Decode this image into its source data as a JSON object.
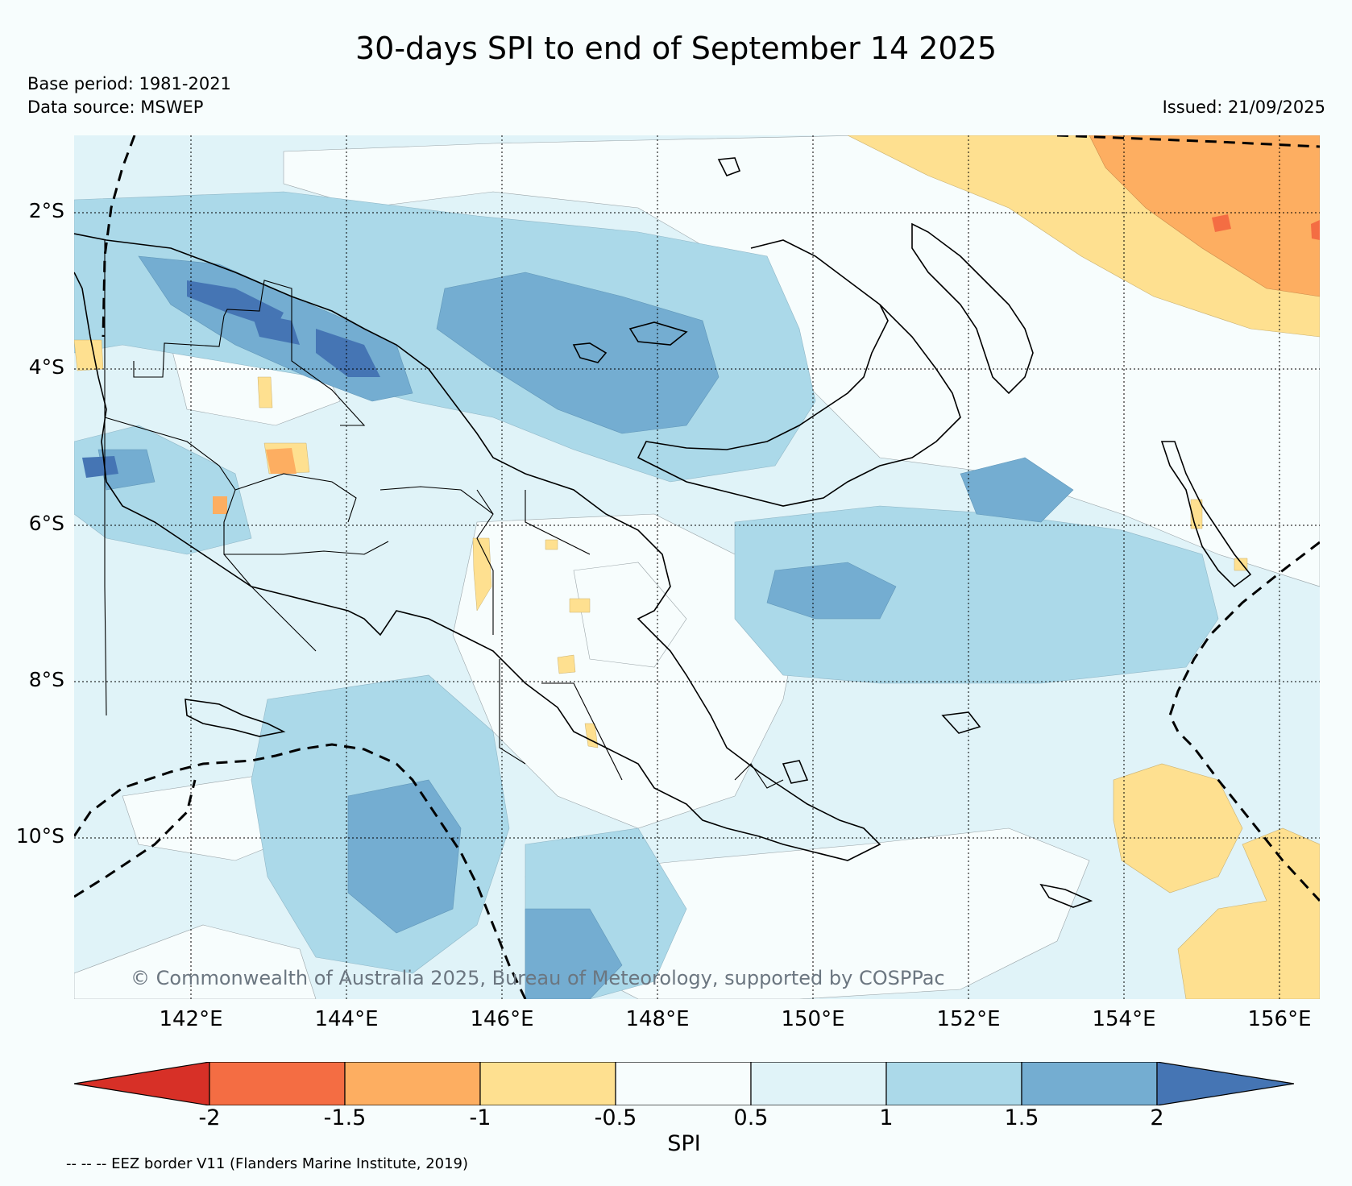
{
  "title": "30-days SPI to end of September 14 2025",
  "base_period": "Base period: 1981-2021",
  "data_source": "Data source: MSWEP",
  "issued": "Issued: 21/09/2025",
  "copyright": "© Commonwealth of Australia 2025, Bureau of Meteorology, supported by COSPPac",
  "lat_labels": [
    "2°S",
    "4°S",
    "6°S",
    "8°S",
    "10°S"
  ],
  "lon_labels": [
    "142°E",
    "144°E",
    "146°E",
    "148°E",
    "150°E",
    "152°E",
    "154°E",
    "156°E"
  ],
  "colorbar": {
    "title": "SPI",
    "tick_labels": [
      "-2",
      "-1.5",
      "-1",
      "-0.5",
      "0.5",
      "1",
      "1.5",
      "2"
    ],
    "colors": [
      "#d73027",
      "#f46d43",
      "#fdae61",
      "#fee090",
      "#f7fdfd",
      "#e0f3f8",
      "#abd9e9",
      "#74add1",
      "#4575b4"
    ]
  },
  "eez_note": "-- -- -- EEZ border V11 (Flanders Marine Institute, 2019)"
}
